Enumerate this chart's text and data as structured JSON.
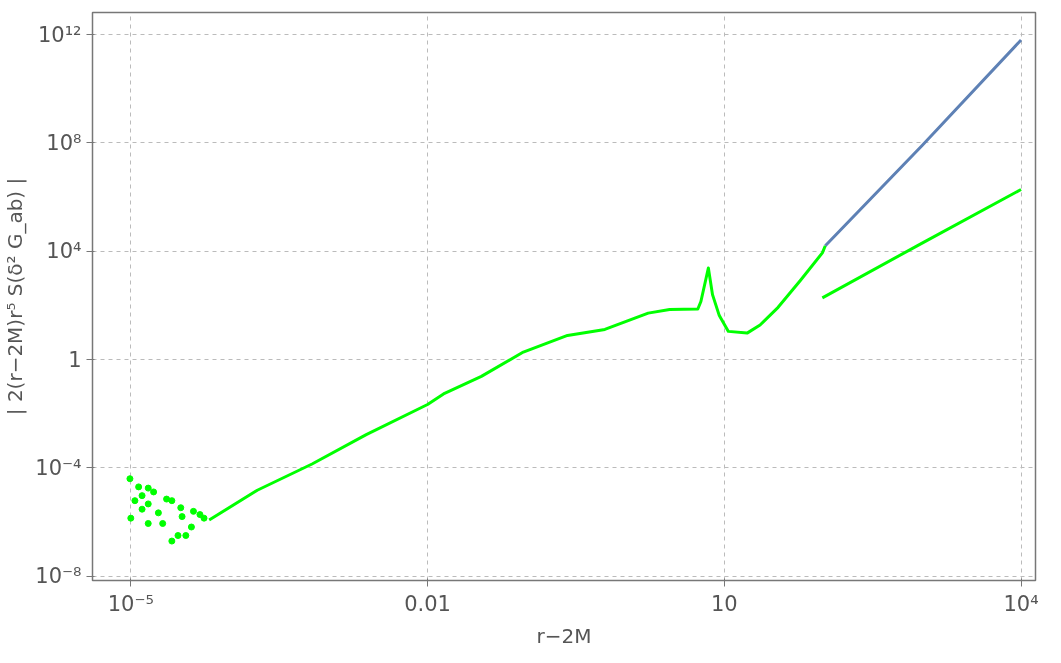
{
  "chart_data": {
    "type": "line",
    "xlabel": "r−2M",
    "ylabel": "| 2(r−2M)r⁵ S(δ² G_ab) |",
    "log": "xy",
    "grid": true,
    "marker": "none",
    "line_style": "solid",
    "xlim": [
      4.1e-06,
      14000.0
    ],
    "ylim": [
      7e-09,
      6500000000000.0
    ],
    "xticks": [
      {
        "value": 1e-05,
        "label": "10⁻⁵"
      },
      0.01,
      10,
      {
        "value": 10000.0,
        "label": "10⁴"
      }
    ],
    "yticks": [
      {
        "value": 1e-08,
        "label": "10⁻⁸"
      },
      {
        "value": 0.0001,
        "label": "10⁻⁴"
      },
      1,
      {
        "value": 10000.0,
        "label": "10⁴"
      },
      {
        "value": 100000000.0,
        "label": "10⁸"
      },
      {
        "value": 1000000000000.0,
        "label": "10¹²"
      }
    ],
    "series": [
      {
        "type": "scatter",
        "marker": "circle",
        "color": "#00ff00",
        "x": [
          9.8e-06,
          1e-05,
          1.1e-05,
          1.2e-05,
          1.3e-05,
          1.5e-05,
          1.3e-05,
          1.5e-05,
          1.7e-05,
          1.5e-05,
          1.9e-05,
          2.1e-05,
          2.3e-05,
          2.6e-05,
          2.6e-05,
          3e-05,
          3.2e-05,
          3.6e-05,
          3.3e-05,
          4.3e-05,
          4.1e-05,
          5e-05,
          5.5e-05
        ],
        "values": [
          4e-05,
          1.4e-06,
          6.2e-06,
          2e-05,
          9.5e-06,
          1.8e-05,
          3e-06,
          4.7e-06,
          1.3e-05,
          8.9e-07,
          2.2e-06,
          8.9e-07,
          7.1e-06,
          6.2e-06,
          2e-07,
          3.2e-07,
          3.4e-06,
          3.2e-07,
          1.6e-06,
          2.5e-06,
          6.6e-07,
          1.9e-06,
          1.4e-06
        ]
      },
      {
        "color": "#00ff00",
        "x": [
          6.2e-05,
          0.00019,
          0.00068,
          0.0024,
          0.01,
          0.0145,
          0.035,
          0.093,
          0.26,
          0.62,
          1.7,
          2.8,
          5.4,
          5.8,
          6.9,
          7.6,
          8.9,
          11,
          17,
          23,
          35,
          59,
          98,
          105
        ],
        "values": [
          1.2e-06,
          1.5e-05,
          0.00014,
          0.0017,
          0.022,
          0.054,
          0.24,
          1.9,
          7.8,
          13,
          52,
          71,
          74,
          140,
          2400,
          250,
          42,
          11,
          9.5,
          19,
          85,
          850,
          8700,
          16000
        ]
      },
      {
        "color": "#5e81b5",
        "x": [
          105,
          1000,
          10000
        ],
        "values": [
          16000,
          80000000.0,
          630000000000.0
        ]
      },
      {
        "color": "#00ff00",
        "x": [
          98,
          1000,
          10000
        ],
        "values": [
          190,
          20000.0,
          1900000.0
        ]
      }
    ]
  }
}
